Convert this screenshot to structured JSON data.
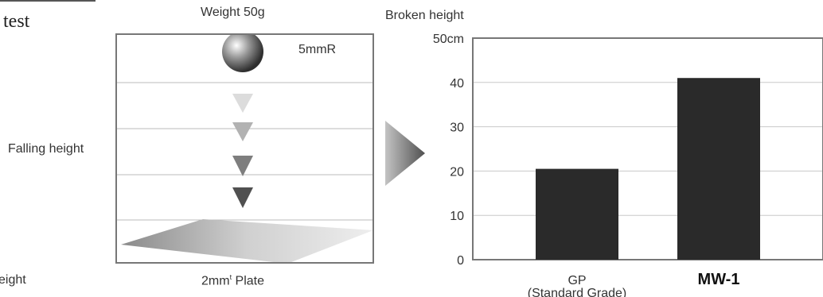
{
  "title_fragment": "test",
  "caption_fragment": "eight",
  "test_diagram": {
    "weight_label": "Weight 50g",
    "radius_label": "5mmR",
    "falling_label": "Falling height",
    "plate_label_main": "2mm",
    "plate_label_sup": "t",
    "plate_label_end": " Plate"
  },
  "chart_data": {
    "type": "bar",
    "ylabel": "Broken height",
    "ylim": [
      0,
      50
    ],
    "yticks": [
      {
        "value": 0,
        "label": "0"
      },
      {
        "value": 10,
        "label": "10"
      },
      {
        "value": 20,
        "label": "20"
      },
      {
        "value": 30,
        "label": "30"
      },
      {
        "value": 40,
        "label": "40"
      },
      {
        "value": 50,
        "label": "50cm"
      }
    ],
    "categories": [
      {
        "label": "GP",
        "sublabel": "(Standard Grade)"
      },
      {
        "label": "MW-1",
        "sublabel": ""
      }
    ],
    "values": [
      20.5,
      41
    ],
    "grid": true,
    "bar_color": "#2a2a2a"
  }
}
